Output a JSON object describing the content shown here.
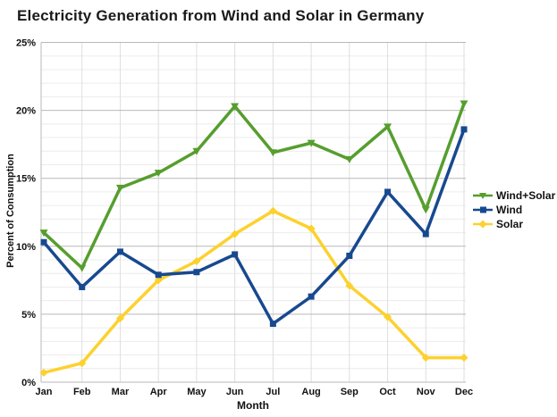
{
  "chart_data": {
    "type": "line",
    "title": "Electricity Generation from Wind and Solar in Germany",
    "xlabel": "Month",
    "ylabel": "Percent of Consumption",
    "categories": [
      "Jan",
      "Feb",
      "Mar",
      "Apr",
      "May",
      "Jun",
      "Jul",
      "Aug",
      "Sep",
      "Oct",
      "Nov",
      "Dec"
    ],
    "ylim": [
      0,
      25
    ],
    "y_major_step": 5,
    "y_minor_step": 1,
    "y_tick_labels": [
      "0%",
      "5%",
      "10%",
      "15%",
      "20%",
      "25%"
    ],
    "grid": true,
    "legend_position": "right",
    "series": [
      {
        "name": "Wind+Solar",
        "color": "#569e2e",
        "marker": "triangle-down",
        "values": [
          11.0,
          8.4,
          14.3,
          15.4,
          17.0,
          20.3,
          16.9,
          17.6,
          16.4,
          18.8,
          12.7,
          20.5
        ]
      },
      {
        "name": "Wind",
        "color": "#17498f",
        "marker": "square",
        "values": [
          10.3,
          7.0,
          9.6,
          7.9,
          8.1,
          9.4,
          4.3,
          6.3,
          9.3,
          14.0,
          10.9,
          18.6
        ]
      },
      {
        "name": "Solar",
        "color": "#fdd12e",
        "marker": "diamond",
        "values": [
          0.7,
          1.4,
          4.7,
          7.5,
          8.9,
          10.9,
          12.6,
          11.3,
          7.1,
          4.8,
          1.8,
          1.8
        ]
      }
    ],
    "colors": {
      "grid_major": "#b9b9b9",
      "grid_minor": "#ececec",
      "grid_vertical": "#dedede",
      "text": "#111111",
      "background": "#ffffff"
    }
  }
}
